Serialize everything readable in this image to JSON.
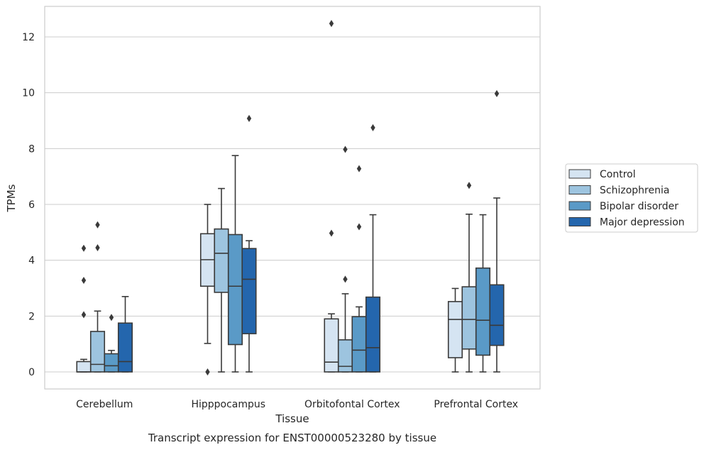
{
  "chart_data": {
    "type": "box",
    "title": "",
    "caption": "Transcript expression for ENST00000523280 by tissue",
    "xlabel": "Tissue",
    "ylabel": "TPMs",
    "ylim": [
      -0.6,
      13.1
    ],
    "yticks": [
      0,
      2,
      4,
      6,
      8,
      10,
      12
    ],
    "grid": true,
    "legend_position": "right",
    "categories": [
      "Cerebellum",
      "Hipppocampus",
      "Orbitofontal Cortex",
      "Prefrontal Cortex"
    ],
    "series": [
      {
        "name": "Control",
        "color": "#d5e4f2",
        "boxes": [
          {
            "whislo": 0,
            "q1": 0,
            "median": 0,
            "q3": 0.37,
            "whishi": 0.45,
            "fliers": [
              2.05,
              3.28,
              4.43
            ]
          },
          {
            "whislo": 1.02,
            "q1": 3.07,
            "median": 4.02,
            "q3": 4.95,
            "whishi": 6.0,
            "fliers": [
              0
            ]
          },
          {
            "whislo": 0,
            "q1": 0,
            "median": 0.35,
            "q3": 1.9,
            "whishi": 2.08,
            "fliers": [
              4.97,
              12.48
            ]
          },
          {
            "whislo": 0,
            "q1": 0.51,
            "median": 1.88,
            "q3": 2.52,
            "whishi": 2.99,
            "fliers": []
          }
        ]
      },
      {
        "name": "Schizophrenia",
        "color": "#9dc4df",
        "boxes": [
          {
            "whislo": 0,
            "q1": 0,
            "median": 0.27,
            "q3": 1.45,
            "whishi": 2.18,
            "fliers": [
              4.45,
              5.27
            ]
          },
          {
            "whislo": 0,
            "q1": 2.85,
            "median": 4.25,
            "q3": 5.12,
            "whishi": 6.57,
            "fliers": []
          },
          {
            "whislo": 0,
            "q1": 0,
            "median": 0.2,
            "q3": 1.15,
            "whishi": 2.8,
            "fliers": [
              3.32,
              7.97
            ]
          },
          {
            "whislo": 0,
            "q1": 0.82,
            "median": 1.88,
            "q3": 3.05,
            "whishi": 5.65,
            "fliers": [
              6.68
            ]
          }
        ]
      },
      {
        "name": "Bipolar disorder",
        "color": "#5a9ac7",
        "boxes": [
          {
            "whislo": 0,
            "q1": 0,
            "median": 0.22,
            "q3": 0.65,
            "whishi": 0.77,
            "fliers": [
              1.95
            ]
          },
          {
            "whislo": 0,
            "q1": 0.98,
            "median": 3.07,
            "q3": 4.92,
            "whishi": 7.75,
            "fliers": []
          },
          {
            "whislo": 0,
            "q1": 0,
            "median": 0.78,
            "q3": 1.98,
            "whishi": 2.33,
            "fliers": [
              5.2,
              7.28
            ]
          },
          {
            "whislo": 0,
            "q1": 0.6,
            "median": 1.85,
            "q3": 3.72,
            "whishi": 5.63,
            "fliers": []
          }
        ]
      },
      {
        "name": "Major depression",
        "color": "#2466ad",
        "boxes": [
          {
            "whislo": 0,
            "q1": 0,
            "median": 0.37,
            "q3": 1.75,
            "whishi": 2.7,
            "fliers": []
          },
          {
            "whislo": 0,
            "q1": 1.37,
            "median": 3.32,
            "q3": 4.42,
            "whishi": 4.7,
            "fliers": [
              9.08
            ]
          },
          {
            "whislo": 0,
            "q1": 0,
            "median": 0.87,
            "q3": 2.68,
            "whishi": 5.63,
            "fliers": [
              8.75
            ]
          },
          {
            "whislo": 0,
            "q1": 0.95,
            "median": 1.67,
            "q3": 3.12,
            "whishi": 6.23,
            "fliers": [
              9.97
            ]
          }
        ]
      }
    ],
    "colors": {
      "grid": "#cccccc",
      "spine": "#cccccc",
      "box_edge": "#3a3a3a",
      "text": "#262626"
    }
  }
}
